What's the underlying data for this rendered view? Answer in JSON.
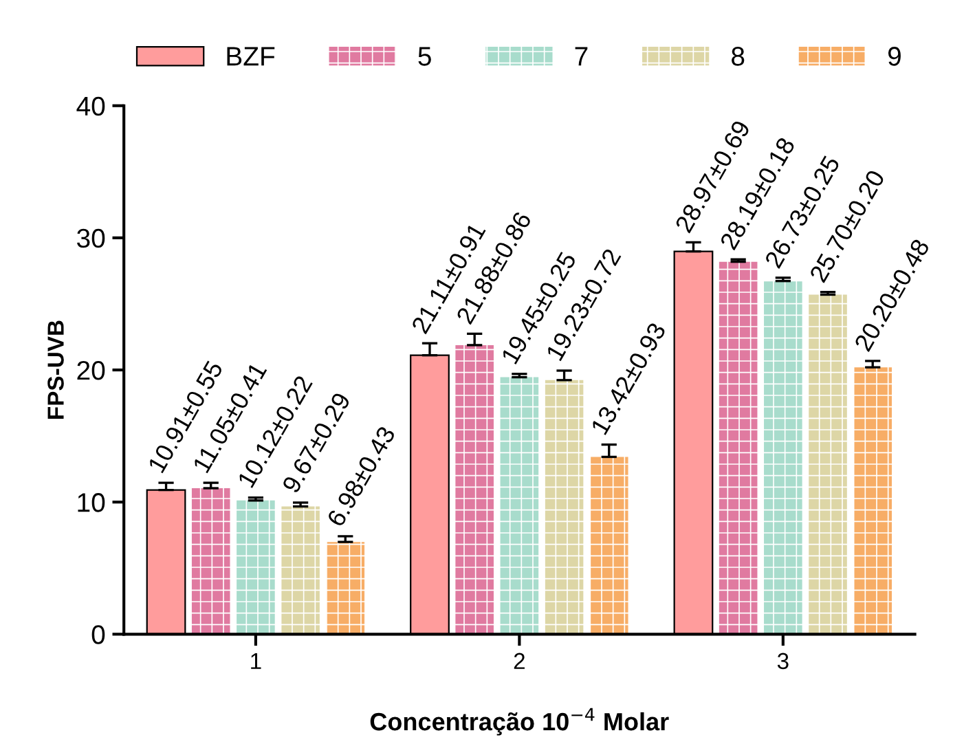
{
  "chart_data": {
    "type": "bar",
    "xlabel": "Concentração 10$^{−4}$ Molar",
    "ylabel": "FPS-UVB",
    "categories": [
      "1",
      "2",
      "3"
    ],
    "ylim": [
      0,
      40
    ],
    "yticks": [
      0,
      10,
      20,
      30,
      40
    ],
    "grid": false,
    "legend": "top",
    "series": [
      {
        "name": "BZF",
        "color": "#ff9c9c",
        "values": [
          10.91,
          21.11,
          28.97
        ],
        "errors": [
          0.55,
          0.91,
          0.69
        ],
        "value_labels": [
          "10.91±0.55",
          "21.11±0.91",
          "28.97±0.69"
        ]
      },
      {
        "name": "5",
        "color": "#e07aa0",
        "values": [
          11.05,
          21.88,
          28.19
        ],
        "errors": [
          0.41,
          0.86,
          0.18
        ],
        "value_labels": [
          "11.05±0.41",
          "21.88±0.86",
          "28.19±0.18"
        ]
      },
      {
        "name": "7",
        "color": "#a8dccc",
        "values": [
          10.12,
          19.45,
          26.73
        ],
        "errors": [
          0.22,
          0.25,
          0.25
        ],
        "value_labels": [
          "10.12±0.22",
          "19.45±0.25",
          "26.73±0.25"
        ]
      },
      {
        "name": "8",
        "color": "#ddd6a6",
        "values": [
          9.67,
          19.23,
          25.7
        ],
        "errors": [
          0.29,
          0.72,
          0.2
        ],
        "value_labels": [
          "9.67±0.29",
          "19.23±0.72",
          "25.70±0.20"
        ]
      },
      {
        "name": "9",
        "color": "#f7ad66",
        "values": [
          6.98,
          13.42,
          20.2
        ],
        "errors": [
          0.43,
          0.93,
          0.48
        ],
        "value_labels": [
          "6.98±0.43",
          "13.42±0.93",
          "20.20±0.48"
        ]
      }
    ]
  }
}
